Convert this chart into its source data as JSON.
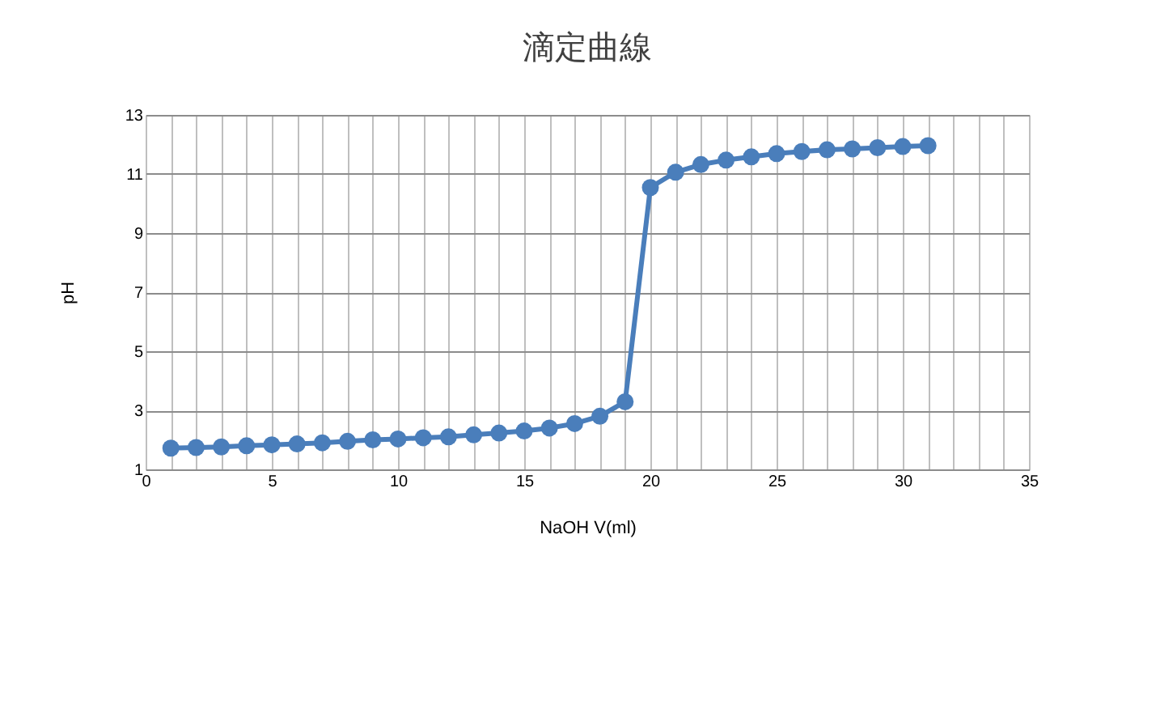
{
  "chart_data": {
    "type": "line",
    "title": "滴定曲線",
    "xlabel": "NaOH V(ml)",
    "ylabel": "pH",
    "x": [
      1,
      2,
      3,
      4,
      5,
      6,
      7,
      8,
      9,
      10,
      11,
      12,
      13,
      14,
      15,
      16,
      17,
      18,
      19,
      20,
      21,
      22,
      23,
      24,
      25,
      26,
      27,
      28,
      29,
      30,
      31
    ],
    "series": [
      {
        "color": "#4a7ebb",
        "values": [
          1.72,
          1.74,
          1.76,
          1.8,
          1.83,
          1.86,
          1.9,
          1.95,
          2.0,
          2.03,
          2.07,
          2.1,
          2.17,
          2.23,
          2.3,
          2.4,
          2.55,
          2.8,
          3.29,
          10.54,
          11.06,
          11.32,
          11.47,
          11.58,
          11.69,
          11.76,
          11.82,
          11.85,
          11.89,
          11.93,
          11.96
        ]
      }
    ],
    "xlim": [
      0,
      35
    ],
    "xticks": [
      0,
      {
        "value": 1,
        "label": null
      },
      {
        "value": 2,
        "label": null
      },
      {
        "value": 3,
        "label": null
      },
      {
        "value": 4,
        "label": null
      },
      5,
      {
        "value": 6,
        "label": null
      },
      {
        "value": 7,
        "label": null
      },
      {
        "value": 8,
        "label": null
      },
      {
        "value": 9,
        "label": null
      },
      10,
      {
        "value": 11,
        "label": null
      },
      {
        "value": 12,
        "label": null
      },
      {
        "value": 13,
        "label": null
      },
      {
        "value": 14,
        "label": null
      },
      15,
      {
        "value": 16,
        "label": null
      },
      {
        "value": 17,
        "label": null
      },
      {
        "value": 18,
        "label": null
      },
      {
        "value": 19,
        "label": null
      },
      20,
      {
        "value": 21,
        "label": null
      },
      {
        "value": 22,
        "label": null
      },
      {
        "value": 23,
        "label": null
      },
      {
        "value": 24,
        "label": null
      },
      25,
      {
        "value": 26,
        "label": null
      },
      {
        "value": 27,
        "label": null
      },
      {
        "value": 28,
        "label": null
      },
      {
        "value": 29,
        "label": null
      },
      30,
      {
        "value": 31,
        "label": null
      },
      {
        "value": 32,
        "label": null
      },
      {
        "value": 33,
        "label": null
      },
      {
        "value": 34,
        "label": null
      },
      35
    ],
    "ylim": [
      1,
      13
    ],
    "yticks": [
      1,
      3,
      5,
      7,
      9,
      11,
      13
    ],
    "grid": true,
    "marker": "circle",
    "line_style": "solid"
  }
}
